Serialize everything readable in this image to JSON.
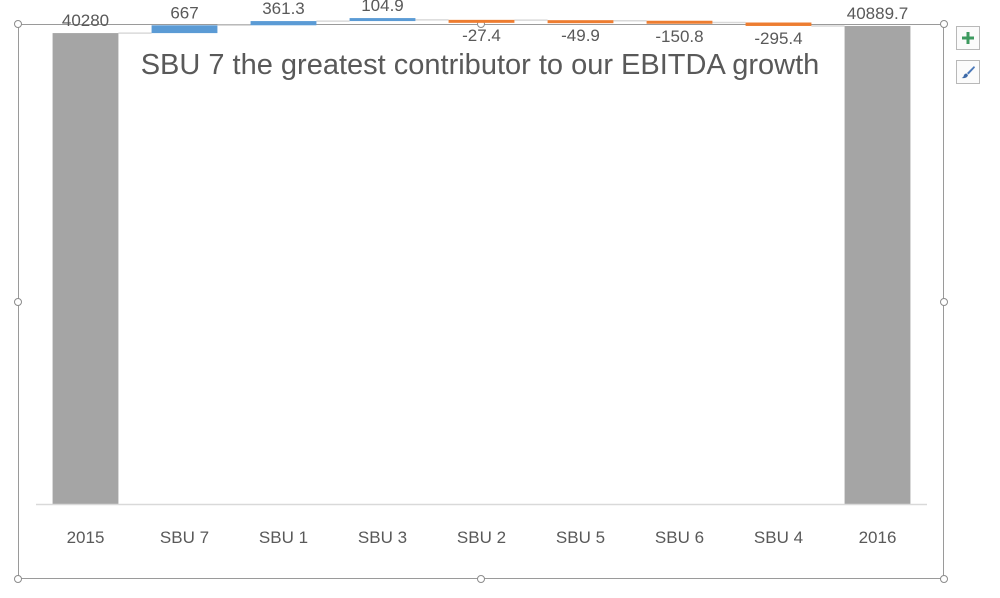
{
  "chart_data": {
    "type": "waterfall",
    "title": "SBU 7 the greatest contributor to our EBITDA growth",
    "categories": [
      "2015",
      "SBU 7",
      "SBU 1",
      "SBU 3",
      "SBU 2",
      "SBU 5",
      "SBU 6",
      "SBU 4",
      "2016"
    ],
    "values": [
      40280,
      667,
      361.3,
      104.9,
      -27.4,
      -49.9,
      -150.8,
      -295.4,
      40889.7
    ],
    "labels": [
      "40280",
      "667",
      "361.3",
      "104.9",
      "-27.4",
      "-49.9",
      "-150.8",
      "-295.4",
      "40889.7"
    ],
    "kinds": [
      "total",
      "delta",
      "delta",
      "delta",
      "delta",
      "delta",
      "delta",
      "delta",
      "total"
    ],
    "ylim": [
      0,
      41400
    ],
    "grid": false,
    "legend": "none",
    "colors": {
      "total": "#a5a5a5",
      "increase": "#5b9bd5",
      "decrease": "#ed7d31",
      "connector": "#d9d9d9",
      "axis": "#d9d9d9",
      "text": "#595959",
      "title": "#595959"
    }
  },
  "ui": {
    "add_element_icon": "plus-icon",
    "chart_style_icon": "paintbrush-icon"
  }
}
